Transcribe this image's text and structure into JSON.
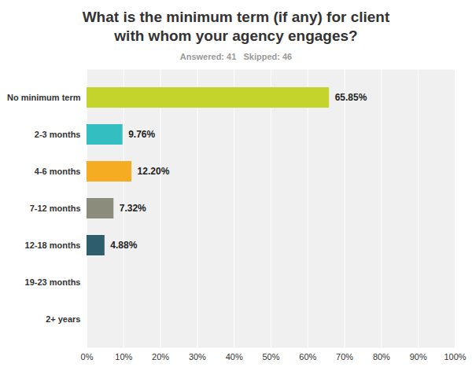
{
  "chart_data": {
    "type": "bar",
    "orientation": "horizontal",
    "title": "What is the minimum term (if any) for client\nwith whom your agency engages?",
    "subtitle": "Answered: 41   Skipped: 46",
    "categories": [
      "No minimum term",
      "2-3 months",
      "4-6 months",
      "7-12 months",
      "12-18 months",
      "19-23 months",
      "2+ years"
    ],
    "values": [
      65.85,
      9.76,
      12.2,
      7.32,
      4.88,
      0,
      0
    ],
    "value_labels": [
      "65.85%",
      "9.76%",
      "12.20%",
      "7.32%",
      "4.88%",
      null,
      null
    ],
    "colors": [
      "#c5d42d",
      "#33bfc1",
      "#f5ab22",
      "#8c8c7c",
      "#2e5e6e",
      "#c5d42d",
      "#33bfc1"
    ],
    "data_labels": true,
    "grid": true,
    "xlim": [
      0,
      100
    ],
    "xticks": [
      {
        "value": 0,
        "label": "0%"
      },
      {
        "value": 10,
        "label": "10%"
      },
      {
        "value": 20,
        "label": "20%"
      },
      {
        "value": 30,
        "label": "30%"
      },
      {
        "value": 40,
        "label": "40%"
      },
      {
        "value": 50,
        "label": "50%"
      },
      {
        "value": 60,
        "label": "60%"
      },
      {
        "value": 70,
        "label": "70%"
      },
      {
        "value": 80,
        "label": "80%"
      },
      {
        "value": 90,
        "label": "90%"
      },
      {
        "value": 100,
        "label": "100%"
      }
    ]
  }
}
